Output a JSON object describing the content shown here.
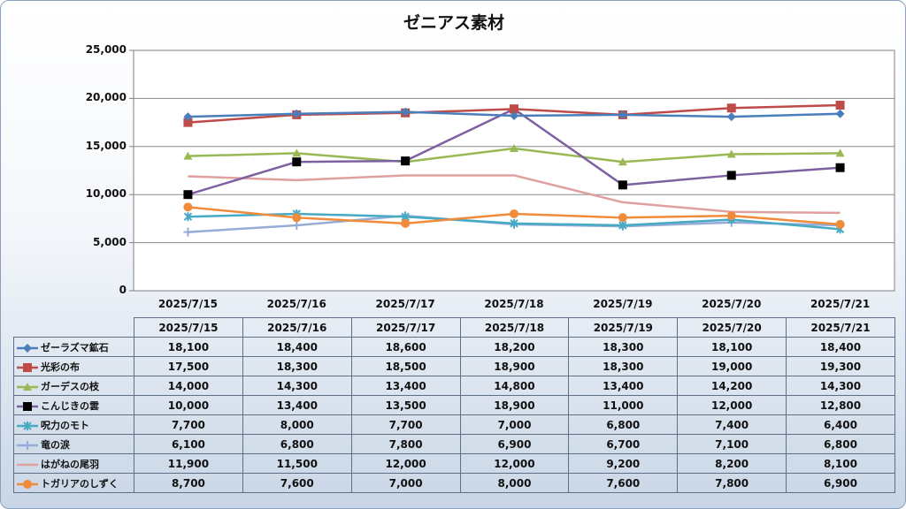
{
  "chart_data": {
    "type": "line",
    "title": "ゼニアス素材",
    "categories": [
      "2025/7/15",
      "2025/7/16",
      "2025/7/17",
      "2025/7/18",
      "2025/7/19",
      "2025/7/20",
      "2025/7/21"
    ],
    "ylim": [
      0,
      25000
    ],
    "yticks": [
      "0",
      "5,000",
      "10,000",
      "15,000",
      "20,000",
      "25,000"
    ],
    "grid": true,
    "legend": "data-table",
    "series": [
      {
        "name": "ゼーラズマ鉱石",
        "color": "#4a7ebb",
        "marker": "diamond",
        "values": [
          18100,
          18400,
          18600,
          18200,
          18300,
          18100,
          18400
        ],
        "labels": [
          "18,100",
          "18,400",
          "18,600",
          "18,200",
          "18,300",
          "18,100",
          "18,400"
        ]
      },
      {
        "name": "光彩の布",
        "color": "#be4b48",
        "marker": "square",
        "values": [
          17500,
          18300,
          18500,
          18900,
          18300,
          19000,
          19300
        ],
        "labels": [
          "17,500",
          "18,300",
          "18,500",
          "18,900",
          "18,300",
          "19,000",
          "19,300"
        ]
      },
      {
        "name": "ガーデスの枝",
        "color": "#98b954",
        "marker": "triangle",
        "values": [
          14000,
          14300,
          13400,
          14800,
          13400,
          14200,
          14300
        ],
        "labels": [
          "14,000",
          "14,300",
          "13,400",
          "14,800",
          "13,400",
          "14,200",
          "14,300"
        ]
      },
      {
        "name": "こんじきの雲",
        "color": "#7d60a0",
        "markerColor": "#000000",
        "marker": "square",
        "values": [
          10000,
          13400,
          13500,
          18900,
          11000,
          12000,
          12800
        ],
        "labels": [
          "10,000",
          "13,400",
          "13,500",
          "18,900",
          "11,000",
          "12,000",
          "12,800"
        ]
      },
      {
        "name": "呪力のモト",
        "color": "#46aac5",
        "marker": "star",
        "values": [
          7700,
          8000,
          7700,
          7000,
          6800,
          7400,
          6400
        ],
        "labels": [
          "7,700",
          "8,000",
          "7,700",
          "7,000",
          "6,800",
          "7,400",
          "6,400"
        ]
      },
      {
        "name": "竜の涙",
        "color": "#95acd6",
        "marker": "plus",
        "values": [
          6100,
          6800,
          7800,
          6900,
          6700,
          7100,
          6800
        ],
        "labels": [
          "6,100",
          "6,800",
          "7,800",
          "6,900",
          "6,700",
          "7,100",
          "6,800"
        ]
      },
      {
        "name": "はがねの尾羽",
        "color": "#e0a0a0",
        "marker": "none",
        "values": [
          11900,
          11500,
          12000,
          12000,
          9200,
          8200,
          8100
        ],
        "labels": [
          "11,900",
          "11,500",
          "12,000",
          "12,000",
          "9,200",
          "8,200",
          "8,100"
        ]
      },
      {
        "name": "トガリアのしずく",
        "color": "#f08b3a",
        "marker": "circle",
        "values": [
          8700,
          7600,
          7000,
          8000,
          7600,
          7800,
          6900
        ],
        "labels": [
          "8,700",
          "7,600",
          "7,000",
          "8,000",
          "7,600",
          "7,800",
          "6,900"
        ]
      }
    ]
  }
}
